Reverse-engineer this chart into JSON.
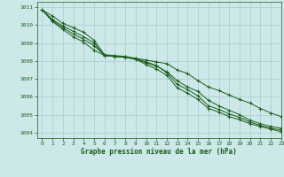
{
  "title": "Graphe pression niveau de la mer (hPa)",
  "background_color": "#cce8e8",
  "grid_color": "#aacccc",
  "line_color": "#1a5c1a",
  "xlim": [
    -0.5,
    23
  ],
  "ylim": [
    1003.7,
    1011.3
  ],
  "xticks": [
    0,
    1,
    2,
    3,
    4,
    5,
    6,
    7,
    8,
    9,
    10,
    11,
    12,
    13,
    14,
    15,
    16,
    17,
    18,
    19,
    20,
    21,
    22,
    23
  ],
  "yticks": [
    1004,
    1005,
    1006,
    1007,
    1008,
    1009,
    1010,
    1011
  ],
  "series": [
    [
      1010.85,
      1010.5,
      1010.1,
      1009.85,
      1009.6,
      1009.15,
      1008.35,
      1008.3,
      1008.25,
      1008.15,
      1008.05,
      1007.95,
      1007.85,
      1007.5,
      1007.3,
      1006.9,
      1006.55,
      1006.35,
      1006.1,
      1005.85,
      1005.65,
      1005.35,
      1005.1,
      1004.9
    ],
    [
      1010.85,
      1010.3,
      1009.95,
      1009.65,
      1009.35,
      1009.0,
      1008.3,
      1008.25,
      1008.2,
      1008.1,
      1007.9,
      1007.7,
      1007.4,
      1006.9,
      1006.55,
      1006.3,
      1005.8,
      1005.5,
      1005.25,
      1005.0,
      1004.7,
      1004.5,
      1004.35,
      1004.25
    ],
    [
      1010.85,
      1010.25,
      1009.85,
      1009.5,
      1009.2,
      1008.85,
      1008.32,
      1008.27,
      1008.22,
      1008.12,
      1007.95,
      1007.75,
      1007.35,
      1006.7,
      1006.4,
      1006.05,
      1005.5,
      1005.3,
      1005.05,
      1004.85,
      1004.6,
      1004.4,
      1004.25,
      1004.15
    ],
    [
      1010.85,
      1010.2,
      1009.75,
      1009.35,
      1009.05,
      1008.6,
      1008.3,
      1008.25,
      1008.2,
      1008.1,
      1007.8,
      1007.55,
      1007.2,
      1006.5,
      1006.2,
      1005.85,
      1005.35,
      1005.15,
      1004.9,
      1004.72,
      1004.5,
      1004.35,
      1004.2,
      1004.05
    ]
  ]
}
